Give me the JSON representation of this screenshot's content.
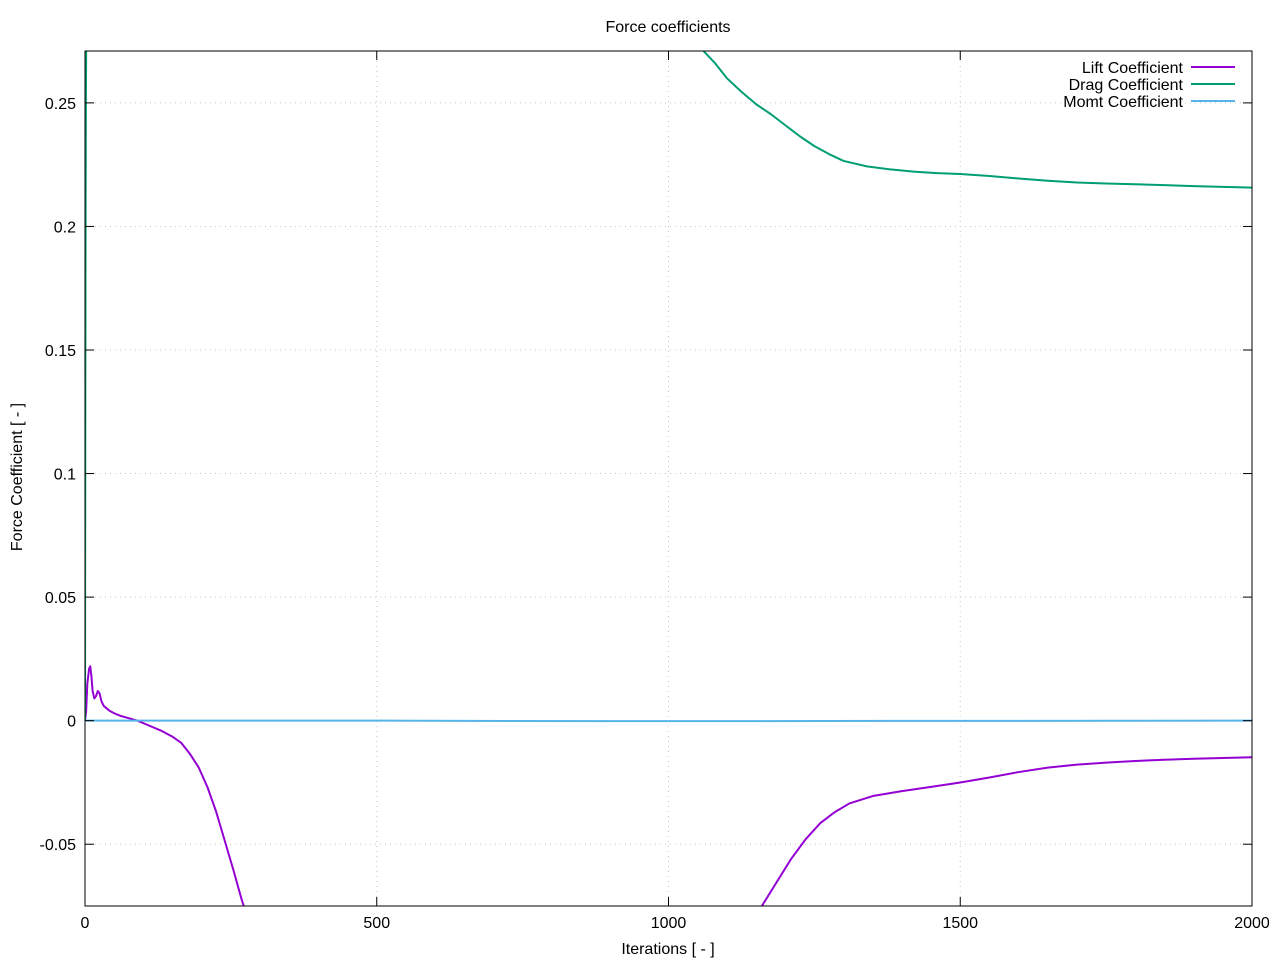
{
  "chart_data": {
    "type": "line",
    "title": "Force coefficients",
    "xlabel": "Iterations [ - ]",
    "ylabel": "Force Coefficient [ - ]",
    "xlim": [
      0,
      2000
    ],
    "ylim": [
      -0.075,
      0.271
    ],
    "x_ticks": [
      0,
      500,
      1000,
      1500,
      2000
    ],
    "x_tick_labels": [
      "0",
      "500",
      "1000",
      "1500",
      "2000"
    ],
    "y_ticks": [
      -0.05,
      0,
      0.05,
      0.1,
      0.15,
      0.2,
      0.25
    ],
    "y_tick_labels": [
      "-0.05",
      "0",
      "0.05",
      "0.1",
      "0.15",
      "0.2",
      "0.25"
    ],
    "grid": true,
    "legend_position": "top-right",
    "series": [
      {
        "name": "Lift Coefficient",
        "color": "#9400d3",
        "segments": [
          [
            [
              0,
              0.0
            ],
            [
              2,
              0.004
            ],
            [
              4,
              0.015
            ],
            [
              7,
              0.021
            ],
            [
              9,
              0.022
            ],
            [
              11,
              0.018
            ],
            [
              13,
              0.012
            ],
            [
              16,
              0.009
            ],
            [
              19,
              0.01
            ],
            [
              22,
              0.012
            ],
            [
              25,
              0.011
            ],
            [
              28,
              0.008
            ],
            [
              32,
              0.006
            ],
            [
              37,
              0.005
            ],
            [
              42,
              0.004
            ],
            [
              50,
              0.003
            ],
            [
              60,
              0.002
            ],
            [
              75,
              0.001
            ],
            [
              90,
              0.0
            ],
            [
              110,
              -0.002
            ],
            [
              130,
              -0.004
            ],
            [
              150,
              -0.0065
            ],
            [
              165,
              -0.009
            ],
            [
              180,
              -0.0135
            ],
            [
              195,
              -0.019
            ],
            [
              210,
              -0.027
            ],
            [
              225,
              -0.037
            ],
            [
              240,
              -0.049
            ],
            [
              255,
              -0.061
            ],
            [
              268,
              -0.072
            ],
            [
              272,
              -0.075
            ]
          ],
          [
            [
              1160,
              -0.075
            ],
            [
              1185,
              -0.0655
            ],
            [
              1210,
              -0.056
            ],
            [
              1235,
              -0.048
            ],
            [
              1260,
              -0.0415
            ],
            [
              1285,
              -0.037
            ],
            [
              1310,
              -0.0335
            ],
            [
              1350,
              -0.0305
            ],
            [
              1400,
              -0.0285
            ],
            [
              1450,
              -0.0268
            ],
            [
              1500,
              -0.025
            ],
            [
              1550,
              -0.023
            ],
            [
              1600,
              -0.0208
            ],
            [
              1650,
              -0.019
            ],
            [
              1700,
              -0.0178
            ],
            [
              1750,
              -0.017
            ],
            [
              1800,
              -0.0163
            ],
            [
              1850,
              -0.0158
            ],
            [
              1900,
              -0.0154
            ],
            [
              1950,
              -0.0151
            ],
            [
              2000,
              -0.0148
            ]
          ]
        ]
      },
      {
        "name": "Drag Coefficient",
        "color": "#009e73",
        "segments": [
          [
            [
              0,
              0.0
            ],
            [
              0.5,
              0.12
            ],
            [
              1,
              0.2
            ],
            [
              1.5,
              0.25
            ],
            [
              2,
              0.271
            ]
          ],
          [
            [
              1060,
              0.271
            ],
            [
              1080,
              0.266
            ],
            [
              1100,
              0.26
            ],
            [
              1125,
              0.2545
            ],
            [
              1150,
              0.2495
            ],
            [
              1175,
              0.2455
            ],
            [
              1200,
              0.241
            ],
            [
              1225,
              0.2365
            ],
            [
              1250,
              0.2325
            ],
            [
              1275,
              0.2293
            ],
            [
              1300,
              0.2265
            ],
            [
              1340,
              0.2243
            ],
            [
              1380,
              0.2231
            ],
            [
              1420,
              0.2222
            ],
            [
              1460,
              0.2216
            ],
            [
              1500,
              0.2212
            ],
            [
              1550,
              0.2204
            ],
            [
              1600,
              0.2194
            ],
            [
              1650,
              0.2185
            ],
            [
              1700,
              0.2178
            ],
            [
              1750,
              0.2174
            ],
            [
              1800,
              0.2171
            ],
            [
              1850,
              0.2167
            ],
            [
              1900,
              0.2163
            ],
            [
              1950,
              0.216
            ],
            [
              2000,
              0.2157
            ]
          ]
        ]
      },
      {
        "name": "Momt Coefficient",
        "color": "#56b4e9",
        "segments": [
          [
            [
              0,
              0.0
            ],
            [
              500,
              0.0
            ],
            [
              900,
              -0.0002
            ],
            [
              1100,
              -0.0002
            ],
            [
              1400,
              -0.0001
            ],
            [
              2000,
              0.0
            ]
          ]
        ]
      }
    ]
  }
}
